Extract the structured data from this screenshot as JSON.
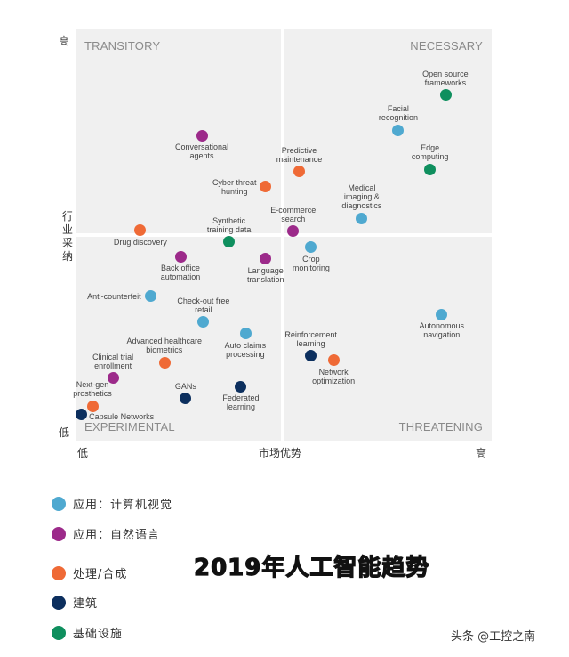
{
  "chart_data": {
    "type": "scatter",
    "title": "2019年人工智能趋势",
    "xlabel": "市场优势",
    "ylabel": "行业采纳",
    "x_ticks": {
      "low": "低",
      "high": "高"
    },
    "y_ticks": {
      "low": "低",
      "high": "高"
    },
    "xlim": [
      0,
      100
    ],
    "ylim": [
      0,
      100
    ],
    "grid": false,
    "quadrants": {
      "top_left": "TRANSITORY",
      "top_right": "NECESSARY",
      "bottom_left": "EXPERIMENTAL",
      "bottom_right": "THREATENING"
    },
    "legend_placement": "bottom-left",
    "categories": [
      {
        "key": "cv",
        "name": "应用：计算机视觉",
        "color": "#4fa9d0"
      },
      {
        "key": "nl",
        "name": "应用：自然语言",
        "color": "#9c2a8a"
      },
      {
        "key": "proc",
        "name": "处理/合成",
        "color": "#ef6a36"
      },
      {
        "key": "arch",
        "name": "建筑",
        "color": "#0c2f5e"
      },
      {
        "key": "infra",
        "name": "基础设施",
        "color": "#0f8f5e"
      }
    ],
    "points": [
      {
        "label": "Open source\nframeworks",
        "cat": "infra",
        "x": 88.9,
        "y": 84.0,
        "pos": "above"
      },
      {
        "label": "Facial\nrecognition",
        "cat": "cv",
        "x": 77.5,
        "y": 75.5,
        "pos": "above"
      },
      {
        "label": "Edge\ncomputing",
        "cat": "infra",
        "x": 85.2,
        "y": 66.0,
        "pos": "above"
      },
      {
        "label": "Conversational\nagents",
        "cat": "nl",
        "x": 30.2,
        "y": 74.2,
        "pos": "below"
      },
      {
        "label": "Predictive\nmaintenance",
        "cat": "proc",
        "x": 53.7,
        "y": 65.4,
        "pos": "above"
      },
      {
        "label": "Cyber threat\nhunting",
        "cat": "proc",
        "x": 45.6,
        "y": 61.7,
        "pos": "left"
      },
      {
        "label": "Medical\nimaging &\ndiagnostics",
        "cat": "cv",
        "x": 68.7,
        "y": 54.1,
        "pos": "above"
      },
      {
        "label": "E-commerce\nsearch",
        "cat": "nl",
        "x": 52.2,
        "y": 50.9,
        "pos": "above"
      },
      {
        "label": "Drug discovery",
        "cat": "proc",
        "x": 15.4,
        "y": 51.1,
        "pos": "below"
      },
      {
        "label": "Synthetic\ntraining data",
        "cat": "infra",
        "x": 36.8,
        "y": 48.3,
        "pos": "above"
      },
      {
        "label": "Crop\nmonitoring",
        "cat": "cv",
        "x": 56.5,
        "y": 47.0,
        "pos": "below"
      },
      {
        "label": "Back office\nautomation",
        "cat": "nl",
        "x": 25.1,
        "y": 44.8,
        "pos": "below"
      },
      {
        "label": "Language\ntranslation",
        "cat": "nl",
        "x": 45.6,
        "y": 44.2,
        "pos": "below"
      },
      {
        "label": "Anti-counterfeit",
        "cat": "cv",
        "x": 17.8,
        "y": 35.1,
        "pos": "left"
      },
      {
        "label": "Check-out free\nretail",
        "cat": "cv",
        "x": 30.6,
        "y": 28.8,
        "pos": "above"
      },
      {
        "label": "Auto claims\nprocessing",
        "cat": "cv",
        "x": 40.7,
        "y": 26.0,
        "pos": "below"
      },
      {
        "label": "Autonomous\nnavigation",
        "cat": "cv",
        "x": 88.0,
        "y": 30.7,
        "pos": "below"
      },
      {
        "label": "Reinforcement\nlearning",
        "cat": "arch",
        "x": 56.5,
        "y": 20.6,
        "pos": "above"
      },
      {
        "label": "Network\noptimization",
        "cat": "proc",
        "x": 61.9,
        "y": 19.5,
        "pos": "below"
      },
      {
        "label": "Advanced healthcare\nbiometrics",
        "cat": "proc",
        "x": 21.2,
        "y": 19.0,
        "pos": "above"
      },
      {
        "label": "Clinical trial\nenrollment",
        "cat": "nl",
        "x": 8.8,
        "y": 15.2,
        "pos": "above"
      },
      {
        "label": "GANs",
        "cat": "arch",
        "x": 26.3,
        "y": 10.2,
        "pos": "above"
      },
      {
        "label": "Federated\nlearning",
        "cat": "arch",
        "x": 39.6,
        "y": 13.2,
        "pos": "below"
      },
      {
        "label": "Next-gen\nprosthetics",
        "cat": "proc",
        "x": 3.9,
        "y": 8.4,
        "pos": "above"
      },
      {
        "label": "Capsule Networks",
        "cat": "arch",
        "x": 1.1,
        "y": 6.3,
        "pos": "right"
      }
    ]
  },
  "watermark": "头条 @工控之南"
}
